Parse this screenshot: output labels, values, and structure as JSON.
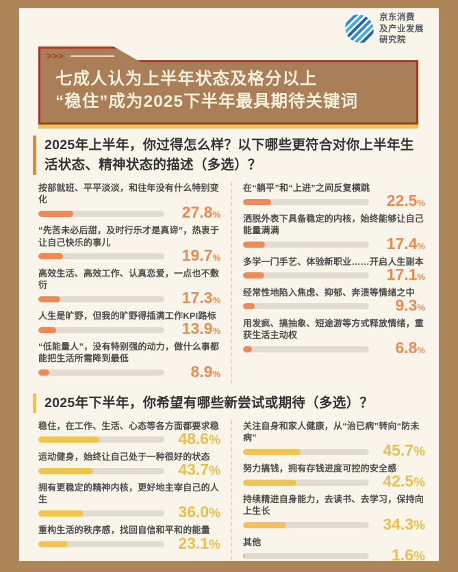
{
  "logo": {
    "icon": "jd-stripes-logo-icon",
    "lines": [
      "京东消费",
      "及产业发展",
      "研究院"
    ]
  },
  "banner": {
    "marker": ">>>",
    "title_lines": [
      "七成人认为上半年状态及格分以上",
      "“稳住”成为2025下半年最具期待关键词"
    ]
  },
  "ui": {
    "percent_sign": "%"
  },
  "colors": {
    "frame_brown": "#ae8459",
    "background_cream": "#f9f5ea",
    "banner_fill": "#aa7f57",
    "banner_border_red": "#9e3d2a",
    "banner_shadow_gold": "#efc35c",
    "banner_text": "#f8f1dd",
    "accent_orange": "#ed8a55",
    "accent_yellow": "#f2c351",
    "bar_track_gray": "#e0dcd4",
    "logo_blue": "#2f8cc9"
  },
  "sections": [
    {
      "question": "2025年上半年，你过得怎么样？以下哪些更符合对你上半年生活状态、精神状态的描述（多选）？",
      "accent": "#ed8a55",
      "percent_color": "#ee8950",
      "columns": [
        [
          {
            "label": "按部就班、平平淡淡，和往年没有什么特别变化",
            "pct": "27.8"
          },
          {
            "label": "“先苦未必后甜，及时行乐才是真谛”，热衷于让自己快乐的事儿",
            "pct": "19.7"
          },
          {
            "label": "高效生活、高效工作、认真恋爱，一点也不敷衍",
            "pct": "17.3"
          },
          {
            "label": "人生是旷野，但我的旷野得插满工作KPI路标",
            "pct": "13.9"
          },
          {
            "label": "“低能量人”，没有特别强的动力，做什么事都能把生活所需降到最低",
            "pct": "8.9"
          }
        ],
        [
          {
            "label": "在“躺平”和“上进”之间反复横跳",
            "pct": "22.5"
          },
          {
            "label": "洒脱外表下具备稳定的内核，始终能够让自己能量满满",
            "pct": "17.4"
          },
          {
            "label": "多学一门手艺、体验新职业……开启人生副本",
            "pct": "17.1"
          },
          {
            "label": "经常性地陷入焦虑、抑郁、奔溃等情绪之中",
            "pct": "9.3"
          },
          {
            "label": "用发疯、搞抽象、短途游等方式释放情绪，重获生活主动权",
            "pct": "6.8"
          }
        ]
      ]
    },
    {
      "question": "2025年下半年，你希望有哪些新尝试或期待（多选）？",
      "accent": "#f2c351",
      "percent_color": "#e9bf4e",
      "columns": [
        [
          {
            "label": "稳住，在工作、生活、心态等各方面都要求稳",
            "pct": "48.6"
          },
          {
            "label": "运动健身，始终让自己处于一种很好的状态",
            "pct": "43.7"
          },
          {
            "label": "拥有更稳定的精神内核，更好地主宰自己的人生",
            "pct": "36.0"
          },
          {
            "label": "重构生活的秩序感，找回自信和平和的能量",
            "pct": "23.1"
          }
        ],
        [
          {
            "label": "关注自身和家人健康，从“治已病”转向“防未病”",
            "pct": "45.7"
          },
          {
            "label": "努力搞钱，拥有存钱进度可控的安全感",
            "pct": "42.5"
          },
          {
            "label": "持续精进自身能力，去读书、去学习，保持向上生长",
            "pct": "34.3"
          },
          {
            "label": "其他",
            "pct": "1.6"
          }
        ]
      ]
    }
  ],
  "chart_data": [
    {
      "type": "bar",
      "title": "2025年上半年，你过得怎么样？以下哪些更符合对你上半年生活状态、精神状态的描述（多选）？",
      "orientation": "horizontal",
      "categories": [
        "按部就班、平平淡淡，和往年没有什么特别变化",
        "“先苦未必后甜，及时行乐才是真谛”，热衷于让自己快乐的事儿",
        "高效生活、高效工作、认真恋爱，一点也不敷衍",
        "人生是旷野，但我的旷野得插满工作KPI路标",
        "“低能量人”，没有特别强的动力，做什么事都能把生活所需降到最低",
        "在“躺平”和“上进”之间反复横跳",
        "洒脱外表下具备稳定的内核，始终能够让自己能量满满",
        "多学一门手艺、体验新职业……开启人生副本",
        "经常性地陷入焦虑、抑郁、奔溃等情绪之中",
        "用发疯、搞抽象、短途游等方式释放情绪，重获生活主动权"
      ],
      "values": [
        27.8,
        19.7,
        17.3,
        13.9,
        8.9,
        22.5,
        17.4,
        17.1,
        9.3,
        6.8
      ],
      "unit": "%",
      "xlim": [
        0,
        100
      ],
      "bar_color": "#ed8a55",
      "grid": false,
      "legend": false
    },
    {
      "type": "bar",
      "title": "2025年下半年，你希望有哪些新尝试或期待（多选）？",
      "orientation": "horizontal",
      "categories": [
        "稳住，在工作、生活、心态等各方面都要求稳",
        "运动健身，始终让自己处于一种很好的状态",
        "拥有更稳定的精神内核，更好地主宰自己的人生",
        "重构生活的秩序感，找回自信和平和的能量",
        "关注自身和家人健康，从“治已病”转向“防未病”",
        "努力搞钱，拥有存钱进度可控的安全感",
        "持续精进自身能力，去读书、去学习，保持向上生长",
        "其他"
      ],
      "values": [
        48.6,
        43.7,
        36.0,
        23.1,
        45.7,
        42.5,
        34.3,
        1.6
      ],
      "unit": "%",
      "xlim": [
        0,
        100
      ],
      "bar_color": "#f2c351",
      "grid": false,
      "legend": false
    }
  ]
}
